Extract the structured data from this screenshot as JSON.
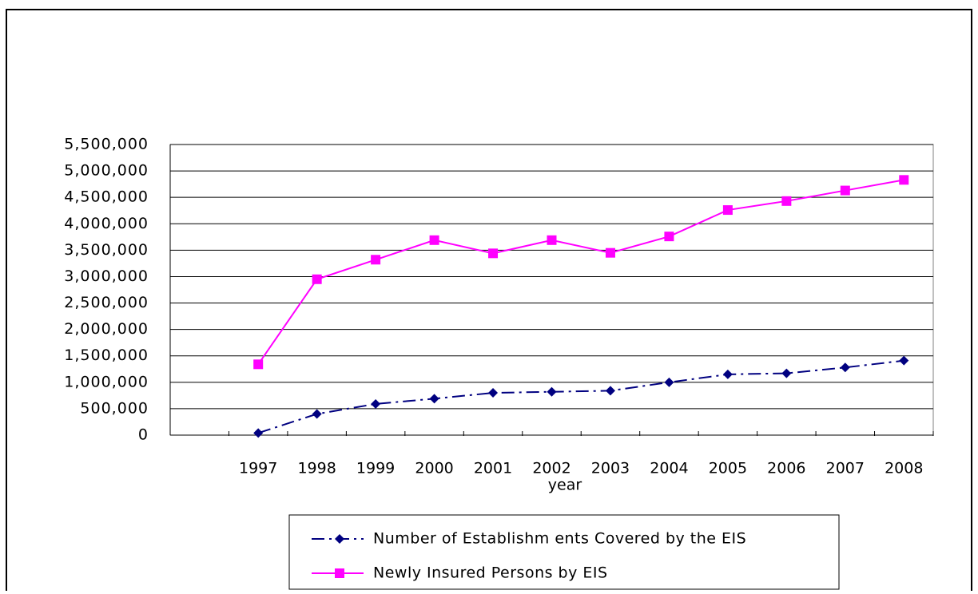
{
  "chart_data": {
    "type": "line",
    "x_label": "year",
    "categories": [
      null,
      "1997",
      "1998",
      "1999",
      "2000",
      "2001",
      "2002",
      "2003",
      "2004",
      "2005",
      "2006",
      "2007",
      "2008"
    ],
    "series": [
      {
        "name": "Number of Establishm ents Covered by the EIS",
        "color": "#000080",
        "marker": "diamond",
        "dash": "dashdot",
        "values": [
          null,
          40000,
          400000,
          590000,
          690000,
          800000,
          820000,
          840000,
          1000000,
          1150000,
          1170000,
          1280000,
          1410000
        ]
      },
      {
        "name": "Newly Insured Persons by EIS",
        "color": "#ff00ff",
        "marker": "square",
        "dash": "solid",
        "values": [
          null,
          1340000,
          2950000,
          3320000,
          3690000,
          3440000,
          3690000,
          3450000,
          3760000,
          4260000,
          4430000,
          4630000,
          4830000
        ]
      }
    ],
    "ylim": [
      0,
      5500000
    ],
    "yticks": [
      0,
      {
        "value": 500000,
        "label": "500,000"
      },
      {
        "value": 1000000,
        "label": "1,000,000"
      },
      {
        "value": 1500000,
        "label": "1,500,000"
      },
      {
        "value": 2000000,
        "label": "2,000,000"
      },
      {
        "value": 2500000,
        "label": "2,500,000"
      },
      {
        "value": 3000000,
        "label": "3,000,000"
      },
      {
        "value": 3500000,
        "label": "3,500,000"
      },
      {
        "value": 4000000,
        "label": "4,000,000"
      },
      {
        "value": 4500000,
        "label": "4,500,000"
      },
      {
        "value": 5000000,
        "label": "5,000,000"
      },
      {
        "value": 5500000,
        "label": "5,500,000"
      }
    ],
    "grid": true,
    "legend": "bottom"
  }
}
